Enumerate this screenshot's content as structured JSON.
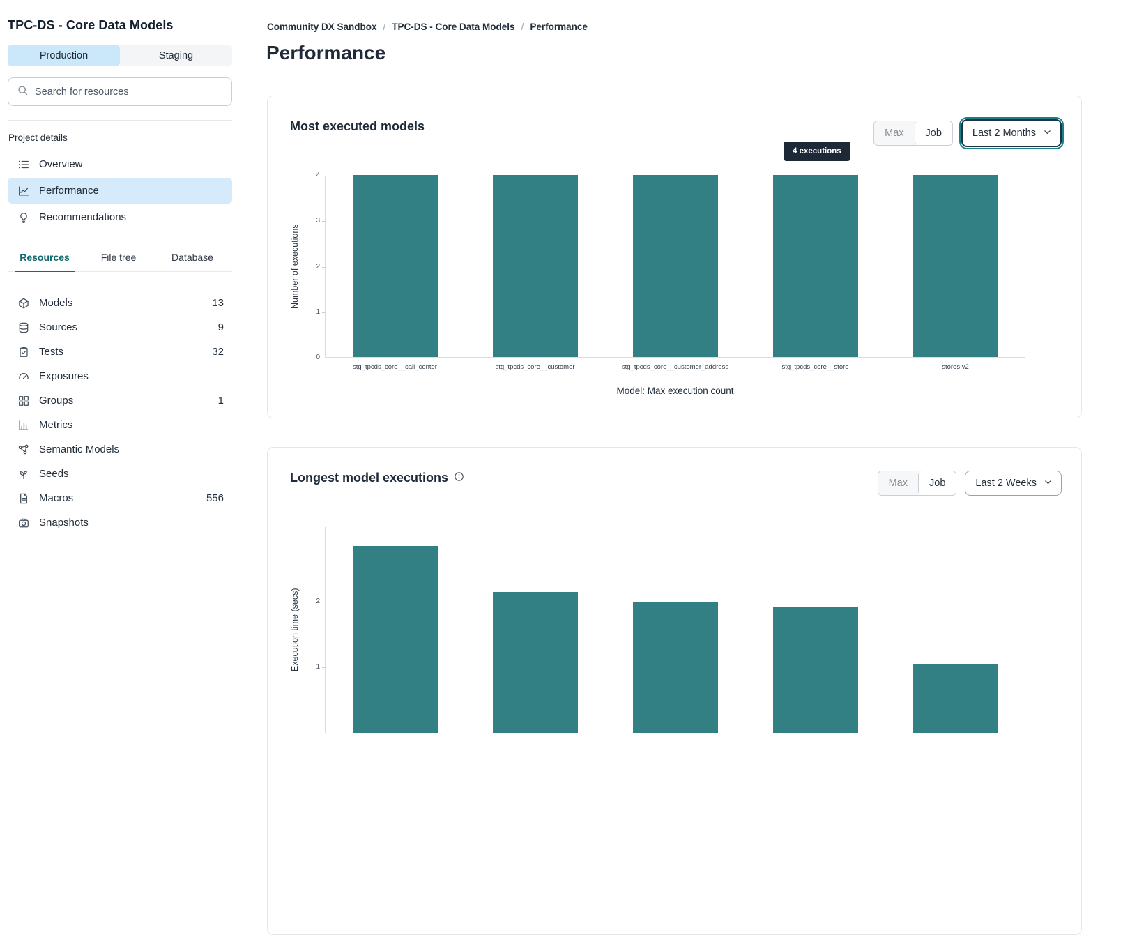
{
  "sidebar": {
    "project_title": "TPC-DS - Core Data Models",
    "environment_tabs": [
      {
        "label": "Production",
        "active": true
      },
      {
        "label": "Staging",
        "active": false
      }
    ],
    "search": {
      "placeholder": "Search for resources"
    },
    "section_label": "Project details",
    "nav_items": [
      {
        "label": "Overview",
        "icon": "list-icon",
        "active": false
      },
      {
        "label": "Performance",
        "icon": "line-chart-icon",
        "active": true
      },
      {
        "label": "Recommendations",
        "icon": "lightbulb-icon",
        "active": false
      }
    ],
    "resource_tabs": [
      {
        "label": "Resources",
        "active": true
      },
      {
        "label": "File tree",
        "active": false
      },
      {
        "label": "Database",
        "active": false
      }
    ],
    "resources": [
      {
        "label": "Models",
        "icon": "cube-icon",
        "count": "13"
      },
      {
        "label": "Sources",
        "icon": "database-icon",
        "count": "9"
      },
      {
        "label": "Tests",
        "icon": "clipboard-check-icon",
        "count": "32"
      },
      {
        "label": "Exposures",
        "icon": "gauge-icon",
        "count": ""
      },
      {
        "label": "Groups",
        "icon": "grid-icon",
        "count": "1"
      },
      {
        "label": "Metrics",
        "icon": "bar-chart-icon",
        "count": ""
      },
      {
        "label": "Semantic Models",
        "icon": "graph-icon",
        "count": ""
      },
      {
        "label": "Seeds",
        "icon": "seedling-icon",
        "count": ""
      },
      {
        "label": "Macros",
        "icon": "file-text-icon",
        "count": "556"
      },
      {
        "label": "Snapshots",
        "icon": "camera-icon",
        "count": ""
      }
    ]
  },
  "breadcrumb": [
    "Community DX Sandbox",
    "TPC-DS - Core Data Models",
    "Performance"
  ],
  "page_title": "Performance",
  "cards": [
    {
      "title": "Most executed models",
      "has_info": false,
      "buttons": {
        "max": "Max",
        "job": "Job"
      },
      "range_selector": "Last 2 Months",
      "tooltip": "4 executions"
    },
    {
      "title": "Longest model executions",
      "has_info": true,
      "buttons": {
        "max": "Max",
        "job": "Job"
      },
      "range_selector": "Last 2 Weeks"
    }
  ],
  "colors": {
    "bar_teal": "#338084",
    "accent_teal": "#12696e",
    "active_item_blue": "#d5ebfb",
    "tooltip_bg": "#1d2936"
  },
  "chart_data": [
    {
      "type": "bar",
      "title": "Most executed models",
      "categories": [
        "stg_tpcds_core__call_center",
        "stg_tpcds_core__customer",
        "stg_tpcds_core__customer_address",
        "stg_tpcds_core__store",
        "stores.v2"
      ],
      "values": [
        4,
        4,
        4,
        4,
        4
      ],
      "xlabel": "Model: Max execution count",
      "ylabel": "Number of executions",
      "ylim": [
        0,
        4
      ],
      "yticks": [
        0,
        1,
        2,
        3,
        4
      ],
      "bar_color": "#338084",
      "legend": "none",
      "grid": false
    },
    {
      "type": "bar",
      "title": "Longest model executions",
      "categories": [
        "",
        "",
        "",
        "",
        ""
      ],
      "values": [
        2.85,
        2.15,
        2.0,
        1.93,
        1.05
      ],
      "xlabel": "",
      "ylabel": "Execution time (secs)",
      "ylim": [
        0,
        3.14
      ],
      "yticks": [
        1,
        2
      ],
      "bar_color": "#338084",
      "legend": "none",
      "grid": false,
      "note": "chart cut off at bottom of viewport"
    }
  ]
}
